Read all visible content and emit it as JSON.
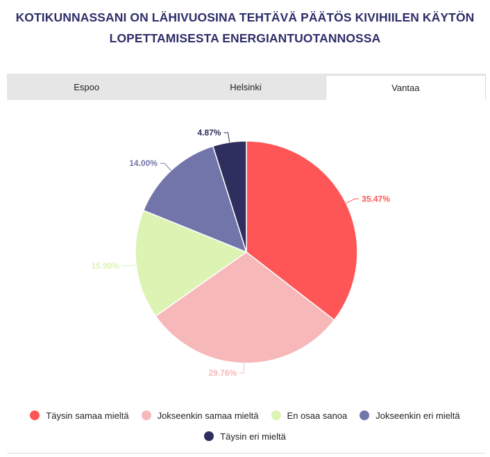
{
  "header": {
    "title_line1": "KOTIKUNNASSANI ON LÄHIVUOSINA TEHTÄVÄ PÄÄTÖS KIVIHIILEN KÄYTÖN",
    "title_line2": "LOPETTAMISESTA ENERGIANTUOTANNOSSA"
  },
  "tabs": [
    {
      "label": "Espoo",
      "active": false
    },
    {
      "label": "Helsinki",
      "active": false
    },
    {
      "label": "Vantaa",
      "active": true
    }
  ],
  "chart_data": {
    "type": "pie",
    "title": "KOTIKUNNASSANI ON LÄHIVUOSINA TEHTÄVÄ PÄÄTÖS KIVIHIILEN KÄYTÖN LOPETTAMISESTA ENERGIANTUOTANNOSSA",
    "categories": [
      "Täysin samaa mieltä",
      "Jokseenkin samaa mieltä",
      "En osaa sanoa",
      "Jokseenkin eri mieltä",
      "Täysin eri mieltä"
    ],
    "values": [
      35.47,
      29.76,
      15.9,
      14.0,
      4.87
    ],
    "data_labels": [
      "35.47%",
      "29.76%",
      "15.90%",
      "14.00%",
      "4.87%"
    ],
    "colors": [
      "#fe5656",
      "#f6b8b8",
      "#dcf3b3",
      "#7175aa",
      "#2e2f5e"
    ],
    "label_colors": [
      "#fe5656",
      "#f6b8b8",
      "#dcf3b3",
      "#7175aa",
      "#2e2f5e"
    ],
    "start_angle_deg": 0,
    "direction": "clockwise",
    "legend_position": "bottom"
  },
  "legend": {
    "items": [
      {
        "label": "Täysin samaa mieltä",
        "color": "#fe5656"
      },
      {
        "label": "Jokseenkin samaa mieltä",
        "color": "#f6b8b8"
      },
      {
        "label": "En osaa sanoa",
        "color": "#dcf3b3"
      },
      {
        "label": "Jokseenkin eri mieltä",
        "color": "#7175aa"
      },
      {
        "label": "Täysin eri mieltä",
        "color": "#2e2f5e"
      }
    ]
  }
}
